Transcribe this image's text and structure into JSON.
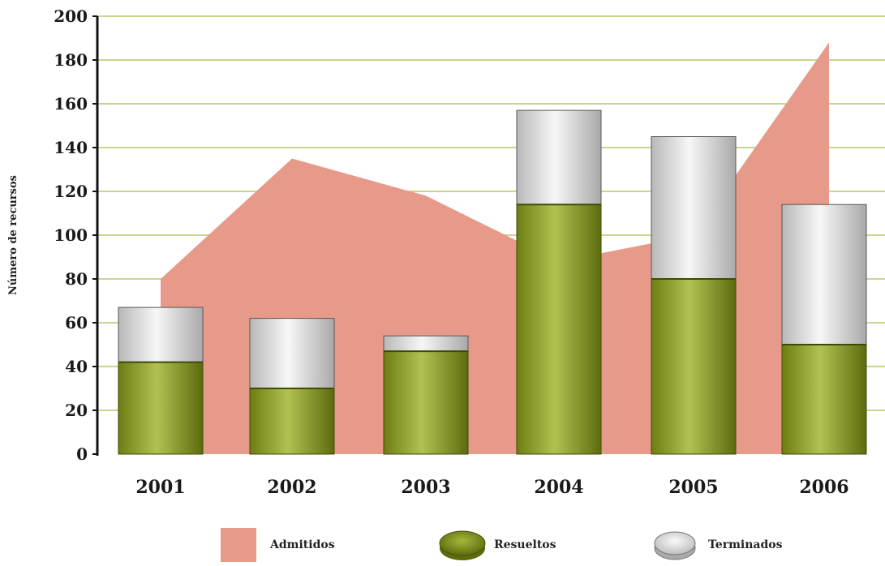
{
  "chart_data": {
    "type": "bar",
    "categories": [
      "2001",
      "2002",
      "2003",
      "2004",
      "2005",
      "2006"
    ],
    "series": [
      {
        "name": "Admitidos",
        "kind": "area",
        "values": [
          80,
          135,
          118,
          88,
          100,
          188
        ],
        "color": "#e79a89"
      },
      {
        "name": "Resueltos",
        "kind": "stacked-bar",
        "values": [
          42,
          30,
          47,
          114,
          80,
          50
        ],
        "color": "#8a9a1e"
      },
      {
        "name": "Terminados",
        "kind": "stacked-bar",
        "values": [
          25,
          32,
          7,
          43,
          65,
          64
        ],
        "color": "#e0e0e0"
      }
    ],
    "ylabel": "Número de recursos",
    "xlabel": "",
    "ylim": [
      0,
      200
    ],
    "yticks": [
      0,
      20,
      40,
      60,
      80,
      100,
      120,
      140,
      160,
      180,
      200
    ],
    "grid": true,
    "grid_color": "#b7c56a",
    "legend": "bottom"
  }
}
